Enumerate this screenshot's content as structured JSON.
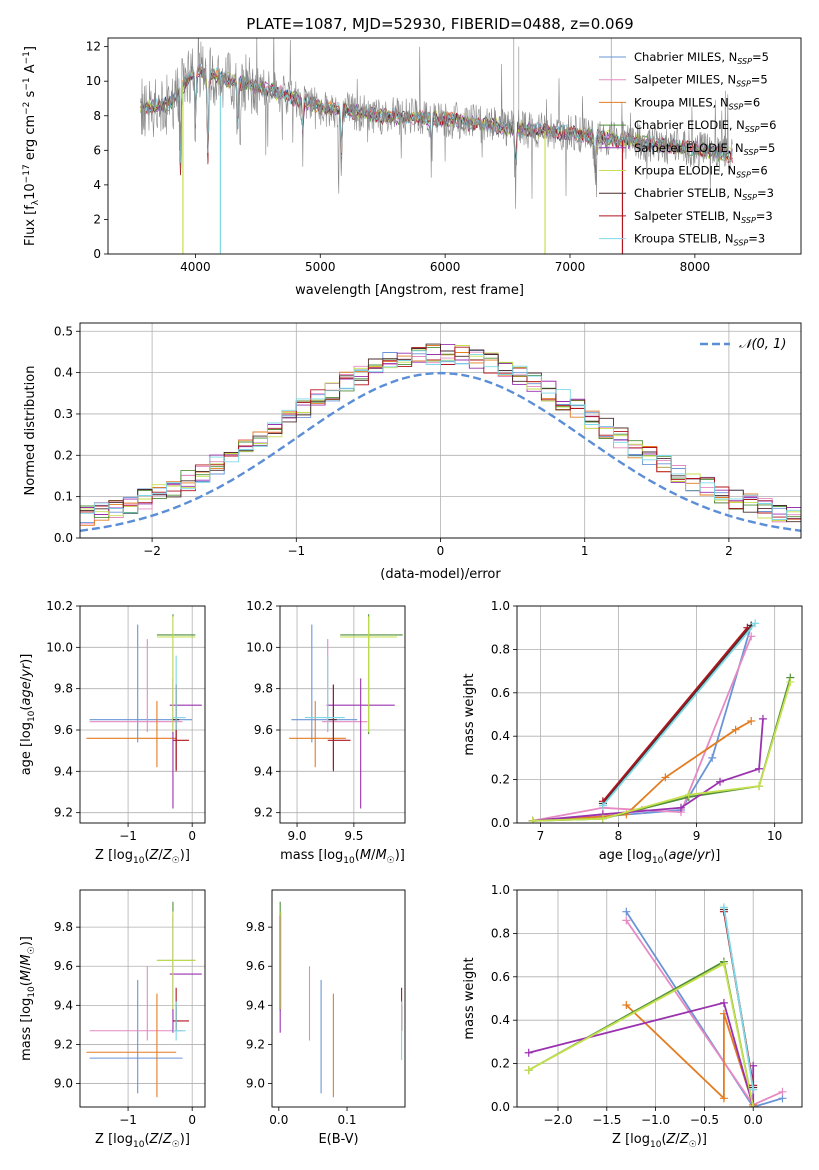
{
  "figure": {
    "title": "PLATE=1087, MJD=52930, FIBERID=0488, z=0.069"
  },
  "colors": {
    "Chabrier MILES": "#6a95d6",
    "Salpeter MILES": "#e68ac3",
    "Kroupa MILES": "#e37d22",
    "Chabrier ELODIE": "#4f8f3a",
    "Salpeter ELODIE": "#9a32b0",
    "Kroupa ELODIE": "#c4e04d",
    "Chabrier STELIB": "#4a2d2d",
    "Salpeter STELIB": "#b0141e",
    "Kroupa STELIB": "#7fd9e6",
    "data": "#888888",
    "normal": "#5b8ed6"
  },
  "chart_data": [
    {
      "id": "spectrum",
      "type": "line",
      "title": "PLATE=1087, MJD=52930, FIBERID=0488, z=0.069",
      "xlabel": "wavelength [Angstrom, rest frame]",
      "ylabel": "Flux [f_λ 10^-17 erg cm^-2 s^-1 A^-1]",
      "xlim": [
        3300,
        8850
      ],
      "ylim": [
        0,
        12.5
      ],
      "xticks": [
        4000,
        5000,
        6000,
        7000,
        8000
      ],
      "yticks": [
        0,
        2,
        4,
        6,
        8,
        10,
        12
      ],
      "legend_position": "top-right",
      "legend": [
        {
          "name": "Chabrier MILES",
          "nssp": "5"
        },
        {
          "name": "Salpeter MILES",
          "nssp": "5"
        },
        {
          "name": "Kroupa MILES",
          "nssp": "6"
        },
        {
          "name": "Chabrier ELODIE",
          "nssp": "6"
        },
        {
          "name": "Salpeter ELODIE",
          "nssp": "5"
        },
        {
          "name": "Kroupa ELODIE",
          "nssp": "6"
        },
        {
          "name": "Chabrier STELIB",
          "nssp": "3"
        },
        {
          "name": "Salpeter STELIB",
          "nssp": "3"
        },
        {
          "name": "Kroupa STELIB",
          "nssp": "3"
        }
      ],
      "continuum": [
        [
          3560,
          8.4
        ],
        [
          3800,
          8.7
        ],
        [
          4000,
          10.7
        ],
        [
          4300,
          10.0
        ],
        [
          4600,
          9.5
        ],
        [
          5000,
          8.5
        ],
        [
          5500,
          8.0
        ],
        [
          6000,
          7.8
        ],
        [
          6500,
          7.3
        ],
        [
          7000,
          7.0
        ],
        [
          7500,
          6.5
        ],
        [
          8000,
          6.1
        ],
        [
          8300,
          5.7
        ]
      ],
      "noise": 1.1,
      "dips": [
        [
          3880,
          5.0
        ],
        [
          4000,
          3.6
        ],
        [
          4100,
          5.4
        ],
        [
          4340,
          2.5
        ],
        [
          4860,
          2.0
        ],
        [
          5170,
          3.0
        ],
        [
          5890,
          2.0
        ],
        [
          6563,
          3.5
        ],
        [
          7200,
          2.0
        ]
      ],
      "spikes": [
        [
          6550,
          13.0
        ],
        [
          6590,
          12.0
        ],
        [
          7330,
          12.5
        ]
      ],
      "model_cut": [
        [
          3900,
          "Kroupa ELODIE"
        ],
        [
          4200,
          "Kroupa STELIB"
        ],
        [
          6800,
          "Kroupa ELODIE"
        ],
        [
          7420,
          "Salpeter STELIB"
        ]
      ]
    },
    {
      "id": "residuals",
      "type": "histogram",
      "xlabel": "(data-model)/error",
      "ylabel": "Normed distribution",
      "xlim": [
        -2.5,
        2.5
      ],
      "ylim": [
        0,
        0.52
      ],
      "xticks": [
        -2,
        -1,
        0,
        1,
        2
      ],
      "yticks": [
        0,
        0.1,
        0.2,
        0.3,
        0.4,
        0.5
      ],
      "bin_width": 0.1,
      "legend": "𝒩(0, 1)",
      "legend_position": "top-right",
      "grid": true
    },
    {
      "id": "z-age",
      "type": "errorbar",
      "xlabel": "Z [log10(Z/Z☉)]",
      "ylabel": "age [log10(age/yr)]",
      "xlim": [
        -1.75,
        0.2
      ],
      "ylim": [
        9.15,
        10.2
      ],
      "xticks": [
        -1,
        0
      ],
      "yticks": [
        9.2,
        9.4,
        9.6,
        9.8,
        10.0,
        10.2
      ],
      "grid": true,
      "points": [
        {
          "model": "Chabrier MILES",
          "x": -0.85,
          "xerr": [
            0.75,
            0.85
          ],
          "y": 9.65,
          "yerr": [
            0.11,
            0.46
          ]
        },
        {
          "model": "Salpeter MILES",
          "x": -0.7,
          "xerr": [
            0.9,
            0.55
          ],
          "y": 9.64,
          "yerr": [
            0.05,
            0.4
          ]
        },
        {
          "model": "Kroupa MILES",
          "x": -0.55,
          "xerr": [
            1.1,
            0.3
          ],
          "y": 9.56,
          "yerr": [
            0.14,
            0.18
          ]
        },
        {
          "model": "Chabrier ELODIE",
          "x": -0.3,
          "xerr": [
            0.25,
            0.35
          ],
          "y": 10.06,
          "yerr": [
            0.48,
            0.1
          ]
        },
        {
          "model": "Salpeter ELODIE",
          "x": -0.3,
          "xerr": [
            0.05,
            0.45
          ],
          "y": 9.72,
          "yerr": [
            0.5,
            0.13
          ]
        },
        {
          "model": "Kroupa ELODIE",
          "x": -0.3,
          "xerr": [
            0.25,
            0.35
          ],
          "y": 10.05,
          "yerr": [
            0.46,
            0.1
          ]
        },
        {
          "model": "Chabrier STELIB",
          "x": -0.25,
          "xerr": [
            0.05,
            0.05
          ],
          "y": 9.65,
          "yerr": [
            0.24,
            0.17
          ]
        },
        {
          "model": "Salpeter STELIB",
          "x": -0.25,
          "xerr": [
            0.05,
            0.2
          ],
          "y": 9.55,
          "yerr": [
            0.15,
            0.27
          ]
        },
        {
          "model": "Kroupa STELIB",
          "x": -0.25,
          "xerr": [
            0.05,
            0.15
          ],
          "y": 9.66,
          "yerr": [
            0.06,
            0.3
          ]
        }
      ]
    },
    {
      "id": "mass-age",
      "type": "errorbar",
      "xlabel": "mass [log10(M/M☉)]",
      "ylabel": "",
      "xlim": [
        8.85,
        9.95
      ],
      "ylim": [
        9.15,
        10.2
      ],
      "xticks": [
        9.0,
        9.5
      ],
      "yticks": [
        9.2,
        9.4,
        9.6,
        9.8,
        10.0,
        10.2
      ],
      "grid": true,
      "points": [
        {
          "model": "Chabrier MILES",
          "x": 9.13,
          "xerr": [
            0.18,
            0.4
          ],
          "y": 9.65,
          "yerr": [
            0.11,
            0.46
          ]
        },
        {
          "model": "Salpeter MILES",
          "x": 9.27,
          "xerr": [
            0.05,
            0.35
          ],
          "y": 9.64,
          "yerr": [
            0.05,
            0.4
          ]
        },
        {
          "model": "Kroupa MILES",
          "x": 9.16,
          "xerr": [
            0.23,
            0.27
          ],
          "y": 9.56,
          "yerr": [
            0.14,
            0.18
          ]
        },
        {
          "model": "Chabrier ELODIE",
          "x": 9.63,
          "xerr": [
            0.25,
            0.3
          ],
          "y": 10.06,
          "yerr": [
            0.48,
            0.1
          ]
        },
        {
          "model": "Salpeter ELODIE",
          "x": 9.56,
          "xerr": [
            0.3,
            0.3
          ],
          "y": 9.72,
          "yerr": [
            0.5,
            0.13
          ]
        },
        {
          "model": "Kroupa ELODIE",
          "x": 9.63,
          "xerr": [
            0.25,
            0.25
          ],
          "y": 10.05,
          "yerr": [
            0.46,
            0.1
          ]
        },
        {
          "model": "Chabrier STELIB",
          "x": 9.32,
          "xerr": [
            0.05,
            0.03
          ],
          "y": 9.65,
          "yerr": [
            0.24,
            0.17
          ]
        },
        {
          "model": "Salpeter STELIB",
          "x": 9.32,
          "xerr": [
            0.05,
            0.15
          ],
          "y": 9.55,
          "yerr": [
            0.15,
            0.27
          ]
        },
        {
          "model": "Kroupa STELIB",
          "x": 9.27,
          "xerr": [
            0.2,
            0.15
          ],
          "y": 9.66,
          "yerr": [
            0.06,
            0.3
          ]
        }
      ]
    },
    {
      "id": "age-weight",
      "type": "line",
      "xlabel": "age [log10(age/yr)]",
      "ylabel": "mass weight",
      "xlim": [
        6.7,
        10.35
      ],
      "ylim": [
        0,
        1.0
      ],
      "xticks": [
        7,
        8,
        9,
        10
      ],
      "yticks": [
        0.0,
        0.2,
        0.4,
        0.6,
        0.8,
        1.0
      ],
      "grid": true,
      "series": [
        {
          "model": "Chabrier MILES",
          "x": [
            6.9,
            7.8,
            8.8,
            9.2,
            9.7
          ],
          "y": [
            0.01,
            0.03,
            0.06,
            0.3,
            0.91
          ]
        },
        {
          "model": "Salpeter MILES",
          "x": [
            6.9,
            7.8,
            8.3,
            8.8,
            9.7
          ],
          "y": [
            0.01,
            0.07,
            0.06,
            0.05,
            0.86
          ]
        },
        {
          "model": "Kroupa MILES",
          "x": [
            6.9,
            7.8,
            8.1,
            8.6,
            9.5,
            9.7
          ],
          "y": [
            0.01,
            0.03,
            0.04,
            0.21,
            0.43,
            0.47
          ]
        },
        {
          "model": "Chabrier ELODIE",
          "x": [
            6.9,
            7.8,
            8.9,
            9.8,
            10.2
          ],
          "y": [
            0.01,
            0.02,
            0.12,
            0.17,
            0.67
          ]
        },
        {
          "model": "Salpeter ELODIE",
          "x": [
            6.9,
            7.8,
            8.8,
            9.3,
            9.8,
            9.85
          ],
          "y": [
            0.01,
            0.04,
            0.07,
            0.19,
            0.25,
            0.48
          ]
        },
        {
          "model": "Kroupa ELODIE",
          "x": [
            6.9,
            7.8,
            8.9,
            9.8,
            10.2
          ],
          "y": [
            0.01,
            0.02,
            0.13,
            0.17,
            0.65
          ]
        },
        {
          "model": "Chabrier STELIB",
          "x": [
            7.8,
            9.7
          ],
          "y": [
            0.09,
            0.91
          ]
        },
        {
          "model": "Salpeter STELIB",
          "x": [
            7.8,
            9.65
          ],
          "y": [
            0.1,
            0.9
          ]
        },
        {
          "model": "Kroupa STELIB",
          "x": [
            7.8,
            9.75
          ],
          "y": [
            0.08,
            0.92
          ]
        }
      ]
    },
    {
      "id": "z-mass",
      "type": "errorbar",
      "xlabel": "Z [log10(Z/Z☉)]",
      "ylabel": "mass [log10(M/M☉)]",
      "xlim": [
        -1.75,
        0.2
      ],
      "ylim": [
        8.88,
        9.99
      ],
      "xticks": [
        -1,
        0
      ],
      "yticks": [
        9.0,
        9.2,
        9.4,
        9.6,
        9.8
      ],
      "grid": true,
      "points": [
        {
          "model": "Chabrier MILES",
          "x": -0.85,
          "xerr": [
            0.75,
            0.7
          ],
          "y": 9.13,
          "yerr": [
            0.18,
            0.4
          ]
        },
        {
          "model": "Salpeter MILES",
          "x": -0.7,
          "xerr": [
            0.9,
            0.55
          ],
          "y": 9.27,
          "yerr": [
            0.05,
            0.33
          ]
        },
        {
          "model": "Kroupa MILES",
          "x": -0.55,
          "xerr": [
            1.1,
            0.3
          ],
          "y": 9.16,
          "yerr": [
            0.23,
            0.3
          ]
        },
        {
          "model": "Chabrier ELODIE",
          "x": -0.3,
          "xerr": [
            0.25,
            0.35
          ],
          "y": 9.63,
          "yerr": [
            0.26,
            0.3
          ]
        },
        {
          "model": "Salpeter ELODIE",
          "x": -0.3,
          "xerr": [
            0.05,
            0.45
          ],
          "y": 9.56,
          "yerr": [
            0.3,
            0.3
          ]
        },
        {
          "model": "Kroupa ELODIE",
          "x": -0.3,
          "xerr": [
            0.25,
            0.35
          ],
          "y": 9.63,
          "yerr": [
            0.25,
            0.25
          ]
        },
        {
          "model": "Chabrier STELIB",
          "x": -0.25,
          "xerr": [
            0.05,
            0.05
          ],
          "y": 9.32,
          "yerr": [
            0.05,
            0.08
          ]
        },
        {
          "model": "Salpeter STELIB",
          "x": -0.25,
          "xerr": [
            0.05,
            0.2
          ],
          "y": 9.32,
          "yerr": [
            0.05,
            0.17
          ]
        },
        {
          "model": "Kroupa STELIB",
          "x": -0.25,
          "xerr": [
            0.05,
            0.15
          ],
          "y": 9.27,
          "yerr": [
            0.05,
            0.15
          ]
        }
      ]
    },
    {
      "id": "ebv-mass",
      "type": "errorbar",
      "xlabel": "E(B-V)",
      "ylabel": "",
      "xlim": [
        -0.01,
        0.185
      ],
      "ylim": [
        8.88,
        9.99
      ],
      "xticks": [
        0.0,
        0.1
      ],
      "yticks": [
        9.0,
        9.2,
        9.4,
        9.6,
        9.8
      ],
      "grid": false,
      "points": [
        {
          "model": "Chabrier MILES",
          "x": 0.062,
          "y": 9.13,
          "yerr": [
            0.18,
            0.4
          ]
        },
        {
          "model": "Salpeter MILES",
          "x": 0.045,
          "y": 9.27,
          "yerr": [
            0.05,
            0.33
          ]
        },
        {
          "model": "Kroupa MILES",
          "x": 0.08,
          "y": 9.16,
          "yerr": [
            0.23,
            0.3
          ]
        },
        {
          "model": "Chabrier ELODIE",
          "x": 0.002,
          "y": 9.63,
          "yerr": [
            0.26,
            0.3
          ]
        },
        {
          "model": "Salpeter ELODIE",
          "x": 0.002,
          "y": 9.56,
          "yerr": [
            0.3,
            0.3
          ]
        },
        {
          "model": "Kroupa ELODIE",
          "x": 0.003,
          "y": 9.63,
          "yerr": [
            0.25,
            0.25
          ]
        },
        {
          "model": "Chabrier STELIB",
          "x": 0.18,
          "y": 9.32,
          "yerr": [
            0.05,
            0.08
          ]
        },
        {
          "model": "Salpeter STELIB",
          "x": 0.18,
          "y": 9.32,
          "yerr": [
            0.05,
            0.17
          ]
        },
        {
          "model": "Kroupa STELIB",
          "x": 0.18,
          "y": 9.27,
          "yerr": [
            0.15,
            0.15
          ]
        }
      ]
    },
    {
      "id": "z-weight",
      "type": "line",
      "xlabel": "Z [log10(Z/Z☉)]",
      "ylabel": "mass weight",
      "xlim": [
        -2.42,
        0.5
      ],
      "ylim": [
        0,
        1.0
      ],
      "xticks": [
        -2.0,
        -1.5,
        -1.0,
        -0.5,
        0.0
      ],
      "yticks": [
        0.0,
        0.2,
        0.4,
        0.6,
        0.8,
        1.0
      ],
      "grid": true,
      "series": [
        {
          "model": "Chabrier MILES",
          "x": [
            -1.3,
            0.0,
            0.3
          ],
          "y": [
            0.9,
            0.0,
            0.04
          ]
        },
        {
          "model": "Salpeter MILES",
          "x": [
            -1.3,
            0.0,
            0.3
          ],
          "y": [
            0.86,
            0.01,
            0.07
          ]
        },
        {
          "model": "Kroupa MILES",
          "x": [
            -1.3,
            -0.3,
            -0.3,
            0.0
          ],
          "y": [
            0.47,
            0.04,
            0.43,
            0.01
          ]
        },
        {
          "model": "Chabrier ELODIE",
          "x": [
            -2.3,
            -0.3,
            0.0
          ],
          "y": [
            0.17,
            0.67,
            0.0
          ]
        },
        {
          "model": "Salpeter ELODIE",
          "x": [
            -2.3,
            -0.3,
            0.0,
            0.0
          ],
          "y": [
            0.25,
            0.48,
            0.0,
            0.19
          ]
        },
        {
          "model": "Kroupa ELODIE",
          "x": [
            -2.3,
            -0.3,
            0.0
          ],
          "y": [
            0.17,
            0.66,
            0.0
          ]
        },
        {
          "model": "Chabrier STELIB",
          "x": [
            -0.3,
            0.0
          ],
          "y": [
            0.91,
            0.09
          ]
        },
        {
          "model": "Salpeter STELIB",
          "x": [
            -0.3,
            0.0
          ],
          "y": [
            0.9,
            0.1
          ]
        },
        {
          "model": "Kroupa STELIB",
          "x": [
            -0.3,
            0.0
          ],
          "y": [
            0.92,
            0.08
          ]
        }
      ]
    }
  ]
}
